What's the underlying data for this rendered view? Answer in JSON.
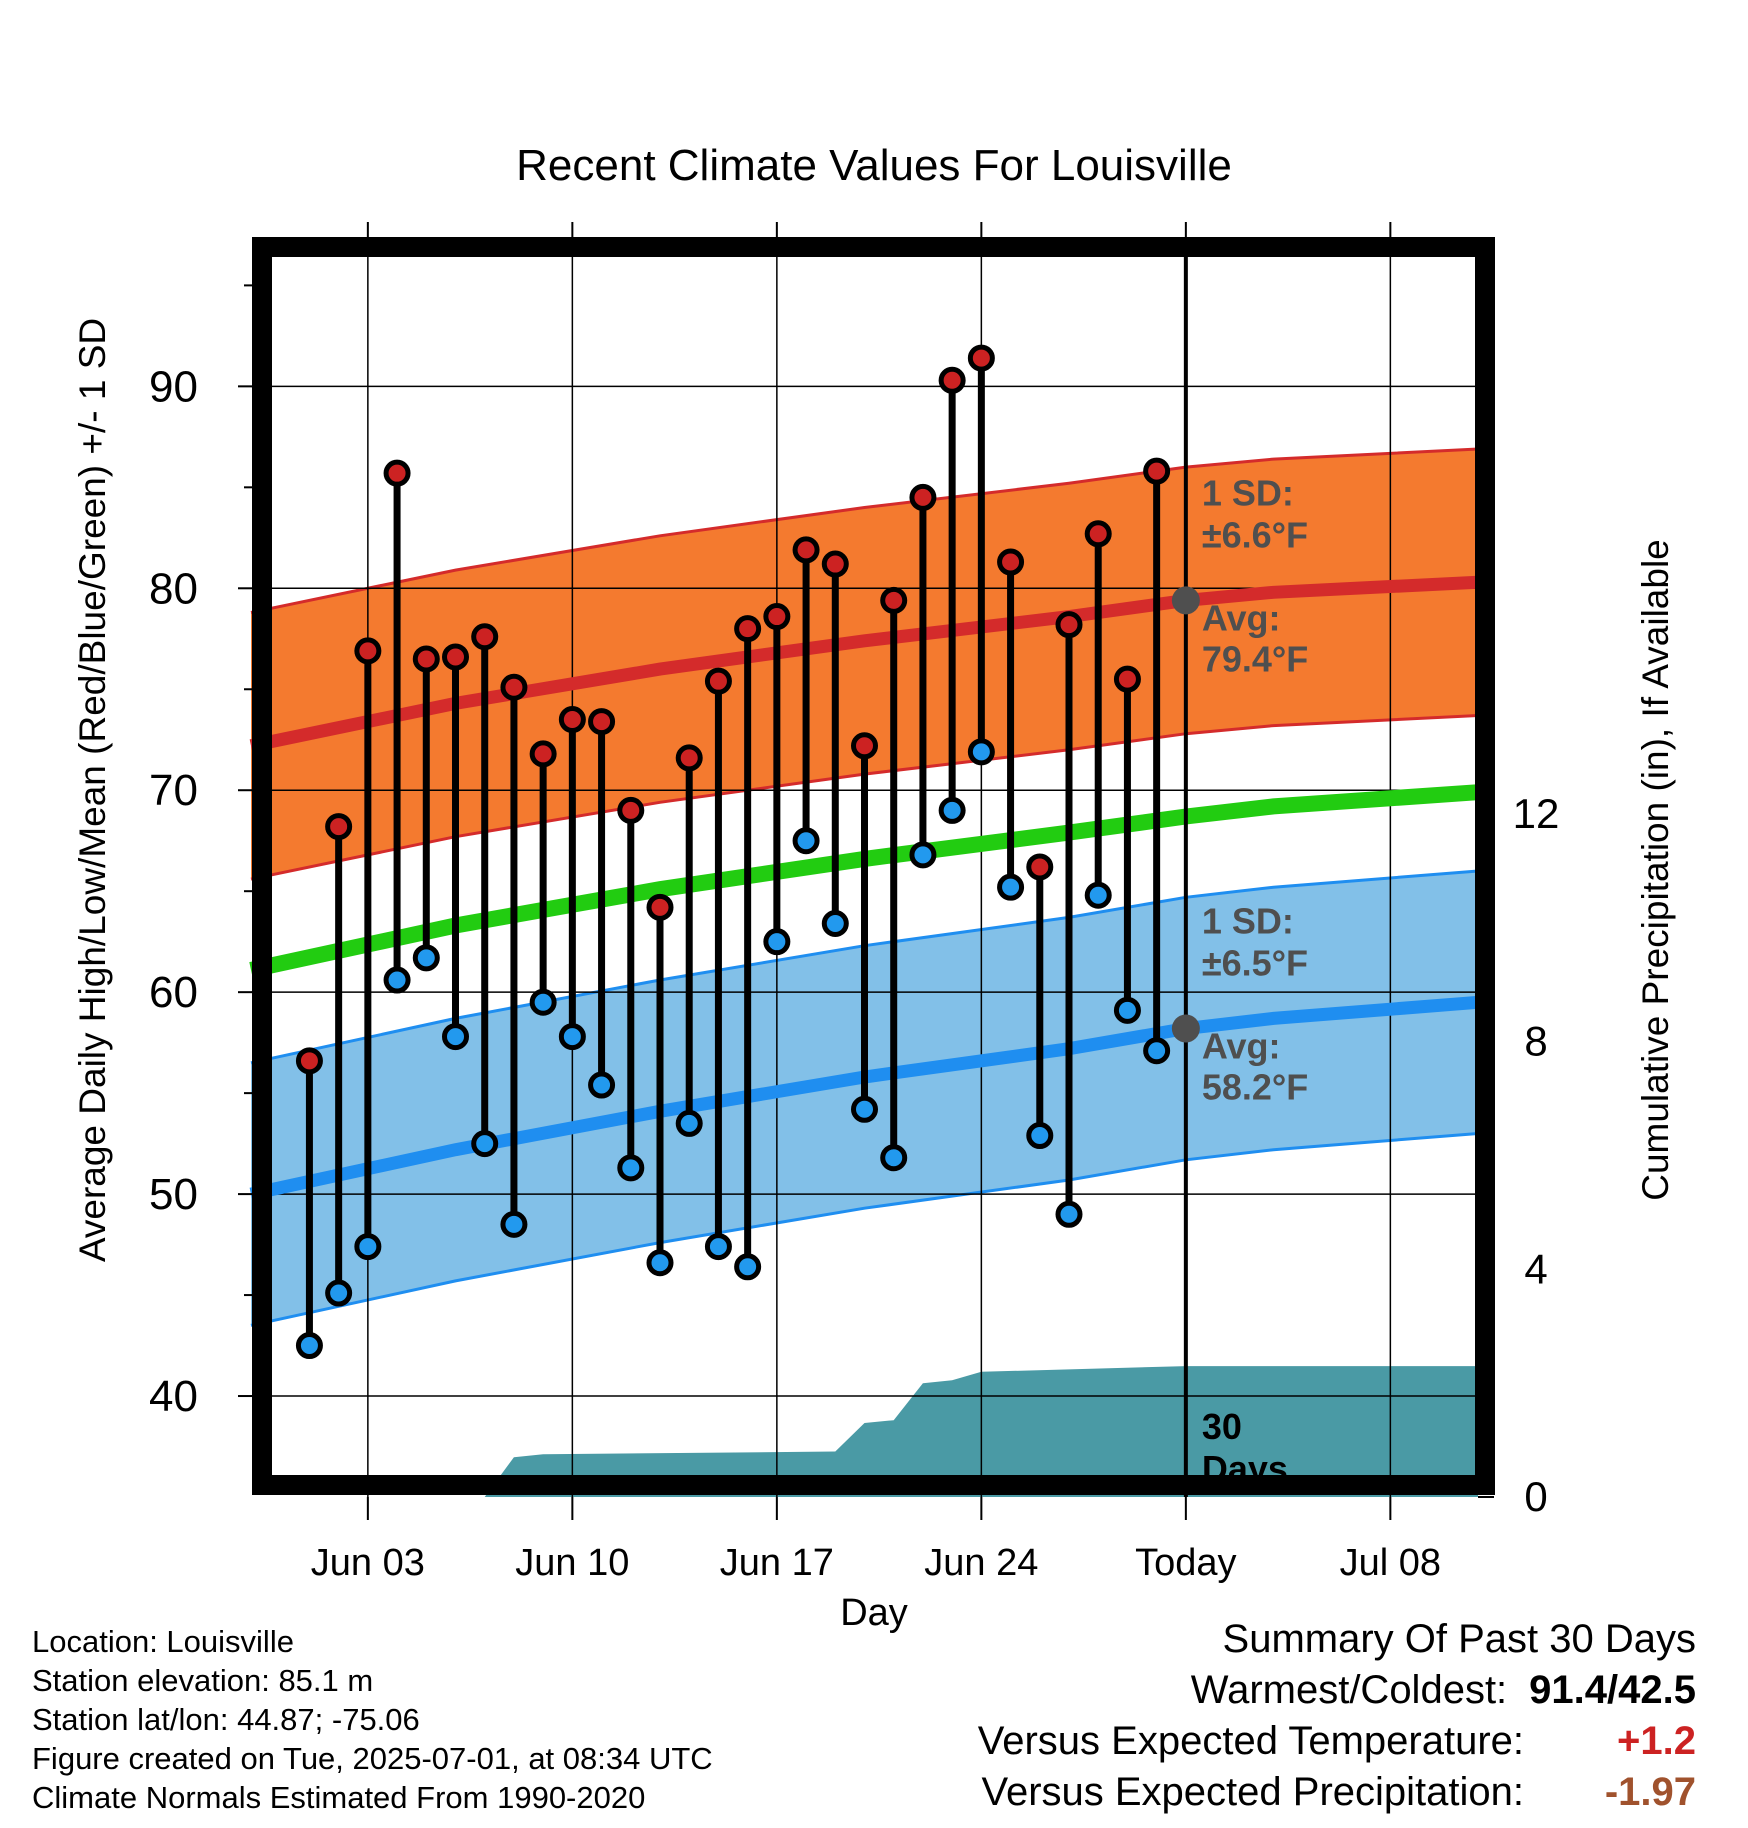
{
  "chart_data": {
    "type": "line",
    "title": "Recent Climate Values For Louisville",
    "xlabel": "Day",
    "ylabel": "Average Daily High/Low/Mean (Red/Blue/Green) +/- 1 SD",
    "y2label": "Cumulative Precipitation (in), If Available",
    "x_tick_labels": [
      "Jun 03",
      "Jun 10",
      "Jun 17",
      "Jun 24",
      "Today",
      "Jul 08"
    ],
    "x_tick_dates": [
      "2025-06-03",
      "2025-06-10",
      "2025-06-17",
      "2025-06-24",
      "2025-07-01",
      "2025-07-08"
    ],
    "xlim": [
      "2025-05-30",
      "2025-07-11"
    ],
    "ylim": [
      35,
      97
    ],
    "y_ticks": [
      40,
      50,
      60,
      70,
      80,
      90
    ],
    "y2lim": [
      0,
      22
    ],
    "y2_ticks": [
      0,
      4,
      8,
      12
    ],
    "grid": true,
    "today": "2025-07-01",
    "dates": [
      "2025-06-01",
      "2025-06-02",
      "2025-06-03",
      "2025-06-04",
      "2025-06-05",
      "2025-06-06",
      "2025-06-07",
      "2025-06-08",
      "2025-06-09",
      "2025-06-10",
      "2025-06-11",
      "2025-06-12",
      "2025-06-13",
      "2025-06-14",
      "2025-06-15",
      "2025-06-16",
      "2025-06-17",
      "2025-06-18",
      "2025-06-19",
      "2025-06-20",
      "2025-06-21",
      "2025-06-22",
      "2025-06-23",
      "2025-06-24",
      "2025-06-25",
      "2025-06-26",
      "2025-06-27",
      "2025-06-28",
      "2025-06-29",
      "2025-06-30"
    ],
    "highs": [
      56.6,
      68.2,
      76.9,
      85.7,
      76.5,
      76.6,
      77.6,
      75.1,
      71.8,
      73.5,
      73.4,
      69.0,
      64.2,
      71.6,
      75.4,
      78.0,
      78.6,
      81.9,
      81.2,
      72.2,
      79.4,
      84.5,
      90.3,
      91.4,
      81.3,
      66.2,
      78.2,
      82.7,
      75.5,
      85.8
    ],
    "lows": [
      42.5,
      45.1,
      47.4,
      60.6,
      61.7,
      57.8,
      52.5,
      48.5,
      59.5,
      57.8,
      55.4,
      51.3,
      46.6,
      53.5,
      47.4,
      46.4,
      62.5,
      67.5,
      63.4,
      54.2,
      51.8,
      66.8,
      69.0,
      71.9,
      65.2,
      52.9,
      49.0,
      64.8,
      59.1,
      57.1
    ],
    "normals": {
      "dates": [
        "2025-05-30",
        "2025-06-06",
        "2025-06-13",
        "2025-06-20",
        "2025-06-27",
        "2025-07-01",
        "2025-07-04",
        "2025-07-11"
      ],
      "avg_high": [
        72.2,
        74.3,
        76.0,
        77.4,
        78.6,
        79.4,
        79.8,
        80.3
      ],
      "avg_low": [
        50.0,
        52.2,
        54.1,
        55.8,
        57.2,
        58.2,
        58.7,
        59.5
      ],
      "avg_mean": [
        61.1,
        63.3,
        65.1,
        66.6,
        67.9,
        68.7,
        69.2,
        69.9
      ],
      "high_sd": 6.6,
      "low_sd": 6.5
    },
    "precip": {
      "dates": [
        "2025-06-07",
        "2025-06-08",
        "2025-06-09",
        "2025-06-19",
        "2025-06-20",
        "2025-06-21",
        "2025-06-22",
        "2025-06-23",
        "2025-06-24",
        "2025-07-01",
        "2025-07-11"
      ],
      "values": [
        0.0,
        0.7,
        0.75,
        0.8,
        1.3,
        1.35,
        2.0,
        2.05,
        2.2,
        2.3,
        2.3
      ]
    },
    "colors": {
      "high_marker": "#cc2222",
      "low_marker": "#2299ee",
      "high_band": "#f47a2f",
      "low_band": "#82c0e8",
      "high_avg_line": "#d42b2b",
      "low_avg_line": "#1f8ef0",
      "mean_line": "#22cc11",
      "precip_fill": "#4a9aa5",
      "annotation": "#4f4f4f"
    },
    "annotations": {
      "high_sd_label": "1 SD:",
      "high_sd_value": "±6.6°F",
      "high_avg_label": "Avg:",
      "high_avg_value": "79.4°F",
      "low_sd_label": "1 SD:",
      "low_sd_value": "±6.5°F",
      "low_avg_label": "Avg:",
      "low_avg_value": "58.2°F",
      "days_line1": "30",
      "days_line2": "Days"
    }
  },
  "info": {
    "location": "Location: Louisville",
    "elevation": "Station elevation: 85.1 m",
    "latlon": "Station lat/lon: 44.87; -75.06",
    "created": "Figure created on Tue, 2025-07-01, at 08:34 UTC",
    "normals": "Climate Normals Estimated From 1990-2020"
  },
  "summary": {
    "title": "Summary Of Past 30 Days",
    "warm_cold_label": "Warmest/Coldest:",
    "warm_cold_value": "91.4/42.5",
    "temp_label": "Versus Expected Temperature:",
    "temp_value": "+1.2",
    "temp_color": "#cc2222",
    "precip_label": "Versus Expected Precipitation:",
    "precip_value": "-1.97",
    "precip_color": "#a0522d"
  }
}
